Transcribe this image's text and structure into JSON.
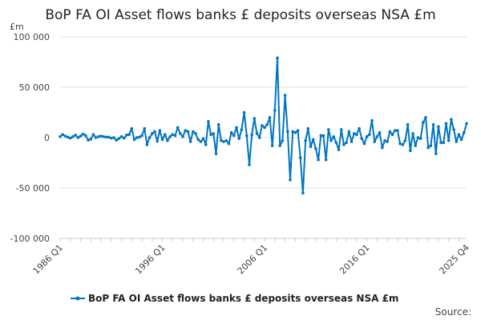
{
  "chart_data": {
    "type": "line",
    "title": "BoP FA OI Asset flows banks £ deposits overseas NSA £m",
    "ylabel": "£m",
    "xlabel": "",
    "ylim": [
      -100000,
      100000
    ],
    "yticks": [
      100000,
      50000,
      0,
      -50000,
      -100000
    ],
    "ytick_labels": [
      "100 000",
      "50 000",
      "0",
      "-50 000",
      "-100 000"
    ],
    "xtick_labels": [
      "1986 Q1",
      "1996 Q1",
      "2006 Q1",
      "2016 Q1",
      "2025 Q4"
    ],
    "x_start": "1986 Q1",
    "x_end": "2025 Q4",
    "grid": true,
    "legend_position": "bottom",
    "series": [
      {
        "name": "BoP FA OI Asset flows banks £ deposits overseas NSA £m",
        "color": "#0075c2",
        "values": [
          1000,
          3000,
          1500,
          500,
          -500,
          1000,
          2500,
          0,
          1500,
          3500,
          2000,
          -2500,
          -1500,
          3000,
          0,
          1000,
          1500,
          1000,
          500,
          500,
          -500,
          0,
          -2500,
          -1000,
          1000,
          -500,
          2500,
          3000,
          9000,
          -2000,
          0,
          500,
          2000,
          9000,
          -7000,
          0,
          4000,
          6000,
          -3500,
          7000,
          -2000,
          3000,
          -3000,
          1000,
          3000,
          2000,
          10000,
          4000,
          1000,
          7000,
          6000,
          -4000,
          6000,
          4000,
          -2000,
          -4000,
          -1000,
          -7000,
          16000,
          3000,
          4000,
          -16000,
          13000,
          -3000,
          -4000,
          -3000,
          -6000,
          5000,
          2000,
          10000,
          -1000,
          8000,
          25000,
          2000,
          -27000,
          3000,
          19000,
          4000,
          0,
          12000,
          10000,
          13000,
          20000,
          -8000,
          27000,
          79000,
          -8000,
          -3000,
          42000,
          6000,
          -42000,
          6000,
          5000,
          7000,
          -20000,
          -55000,
          -3000,
          9000,
          -9000,
          -2000,
          -11000,
          -22000,
          2000,
          2000,
          -22000,
          8000,
          -3000,
          1000,
          -5000,
          -12000,
          8000,
          -7000,
          -5000,
          6000,
          -4000,
          4000,
          3000,
          9000,
          -1000,
          -6000,
          1000,
          3000,
          17000,
          -4000,
          1000,
          5000,
          -10000,
          -3000,
          -4000,
          6000,
          3000,
          7000,
          7000,
          -6000,
          -7000,
          -3000,
          13000,
          -13000,
          4000,
          -8000,
          0,
          -1000,
          15000,
          20000,
          -10000,
          -8000,
          13000,
          -16000,
          11000,
          -5000,
          -5000,
          14000,
          -3000,
          18000,
          8000,
          -4000,
          3000,
          -2000,
          5000,
          14000
        ]
      }
    ],
    "source_label": "Source:"
  }
}
